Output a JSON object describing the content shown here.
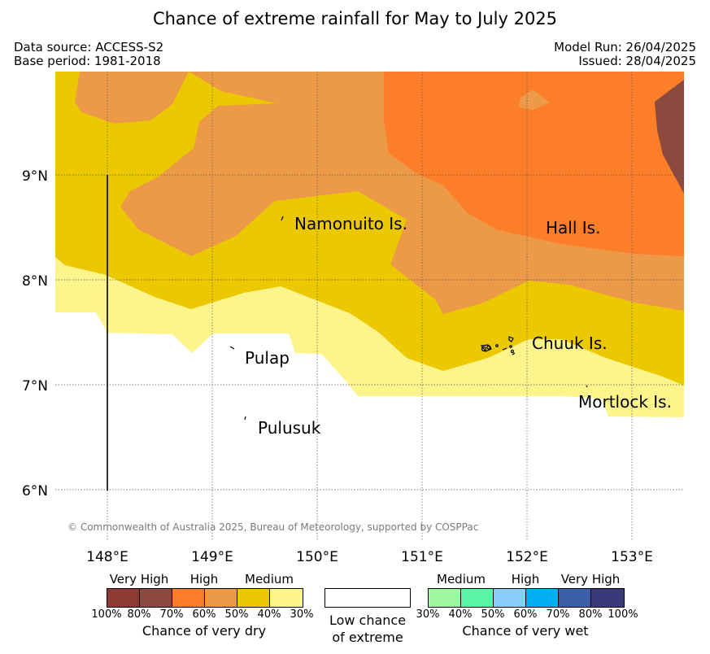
{
  "title": "Chance of extreme rainfall for May to July 2025",
  "header": {
    "data_source": "Data source: ACCESS-S2",
    "base_period": "Base period: 1981-2018",
    "model_run": "Model Run: 26/04/2025",
    "issued": "Issued: 28/04/2025"
  },
  "map": {
    "lon_labels": [
      "148°E",
      "149°E",
      "150°E",
      "151°E",
      "152°E",
      "153°E"
    ],
    "lat_labels": [
      "9°N",
      "8°N",
      "7°N",
      "6°N"
    ],
    "places": {
      "namonuito": "Namonuito Is.",
      "hall": "Hall Is.",
      "chuuk": "Chuuk Is.",
      "pulap": "Pulap",
      "pulusuk": "Pulusuk",
      "mortlock": "Mortlock Is."
    },
    "copyright": "© Commonwealth of Australia 2025, Bureau of Meteorology, supported by COSPPac",
    "colors": {
      "dry_very_high_dark": "#8b4a3d",
      "dry_high_orange": "#fd7e28",
      "dry_high_light": "#ec9a48",
      "dry_medium_gold": "#ebc800",
      "dry_medium_light": "#fdf48c",
      "low": "#ffffff"
    }
  },
  "legend": {
    "dry": {
      "categories": [
        "Very High",
        "High",
        "Medium"
      ],
      "ticks": [
        "100%",
        "80%",
        "70%",
        "60%",
        "50%",
        "40%",
        "30%"
      ],
      "caption": "Chance of very dry",
      "colors": [
        "#8c3a32",
        "#8b4a3d",
        "#fd7e28",
        "#ec9a48",
        "#ebc800",
        "#fdf48c"
      ]
    },
    "low": {
      "caption_line1": "Low chance",
      "caption_line2": "of extreme"
    },
    "wet": {
      "categories": [
        "Medium",
        "High",
        "Very High"
      ],
      "ticks": [
        "30%",
        "40%",
        "50%",
        "60%",
        "70%",
        "80%",
        "100%"
      ],
      "caption": "Chance of very wet",
      "colors": [
        "#a0f5a0",
        "#58f5a4",
        "#88cdf8",
        "#00b0f0",
        "#3a5fa8",
        "#3a3a78"
      ]
    }
  }
}
